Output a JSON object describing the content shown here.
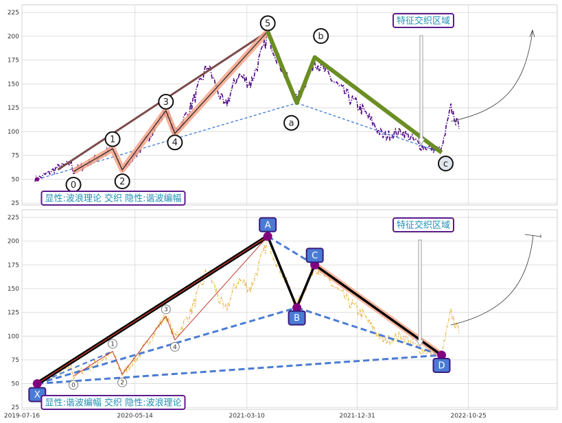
{
  "colors": {
    "price_top": "#4b0082",
    "price_bottom": "#e8b43c",
    "wave_line": "#000000",
    "wave_highlight": "#f4a58a",
    "trend_brown": "#7b4a4a",
    "corrective_green": "#6b8e23",
    "dash_blue": "#3b78d0",
    "harmonic_blue": "#4a7bd4",
    "harmonic_red": "#c0392b",
    "purple_point": "#800080",
    "annotation_border": "#5b1a8c",
    "annotation_text": "#1f8fb3"
  },
  "chart_data": [
    {
      "type": "line",
      "panel": "top",
      "ylim": [
        23,
        233
      ],
      "yticks": [
        25,
        50,
        75,
        100,
        125,
        150,
        175,
        200,
        225
      ],
      "xlim": [
        "2019-07-16",
        "2023-06-20"
      ],
      "grid": true,
      "price_range": {
        "start": "2019-08-20",
        "end": "2022-09-30",
        "low": 48,
        "high": 205
      },
      "waves_impulse": {
        "labels": [
          "0",
          "1",
          "2",
          "3",
          "4",
          "5"
        ],
        "x": [
          "2019-12-01",
          "2020-03-15",
          "2020-04-10",
          "2020-08-05",
          "2020-08-29",
          "2021-05-05"
        ],
        "y": [
          58,
          82,
          60,
          122,
          98,
          205
        ]
      },
      "waves_corrective": {
        "labels": [
          "a",
          "b",
          "c"
        ],
        "x": [
          "2021-07-22",
          "2021-09-08",
          "2022-08-14"
        ],
        "y": [
          130,
          178,
          78
        ]
      },
      "trend_start": {
        "x": "2019-08-26",
        "y": 50
      },
      "annotations": {
        "label_box": "显性:波浪理论 交织 隐性:谐波编幅",
        "zone_label": "特征交织区域"
      }
    },
    {
      "type": "line",
      "panel": "bottom",
      "ylim": [
        23,
        233
      ],
      "yticks": [
        25,
        50,
        75,
        100,
        125,
        150,
        175,
        200,
        225
      ],
      "xlim": [
        "2019-07-16",
        "2023-06-20"
      ],
      "xticks": [
        "2019-07-16",
        "2020-05-14",
        "2021-03-10",
        "2021-12-31",
        "2022-10-25"
      ],
      "grid": true,
      "harmonic_points": {
        "labels": [
          "X",
          "A",
          "B",
          "C",
          "D"
        ],
        "x": [
          "2019-08-26",
          "2021-05-05",
          "2021-07-22",
          "2021-09-08",
          "2022-08-14"
        ],
        "y": [
          50,
          205,
          130,
          175,
          80
        ]
      },
      "waves_impulse": {
        "labels": [
          "0",
          "1",
          "2",
          "3",
          "4"
        ],
        "x": [
          "2019-12-01",
          "2020-03-15",
          "2020-04-10",
          "2020-08-05",
          "2020-08-29"
        ],
        "y": [
          58,
          84,
          60,
          121,
          96
        ]
      },
      "annotations": {
        "label_box": "显性:谐波编幅 交织 隐性:波浪理论",
        "zone_label": "特征交织区域"
      }
    }
  ]
}
